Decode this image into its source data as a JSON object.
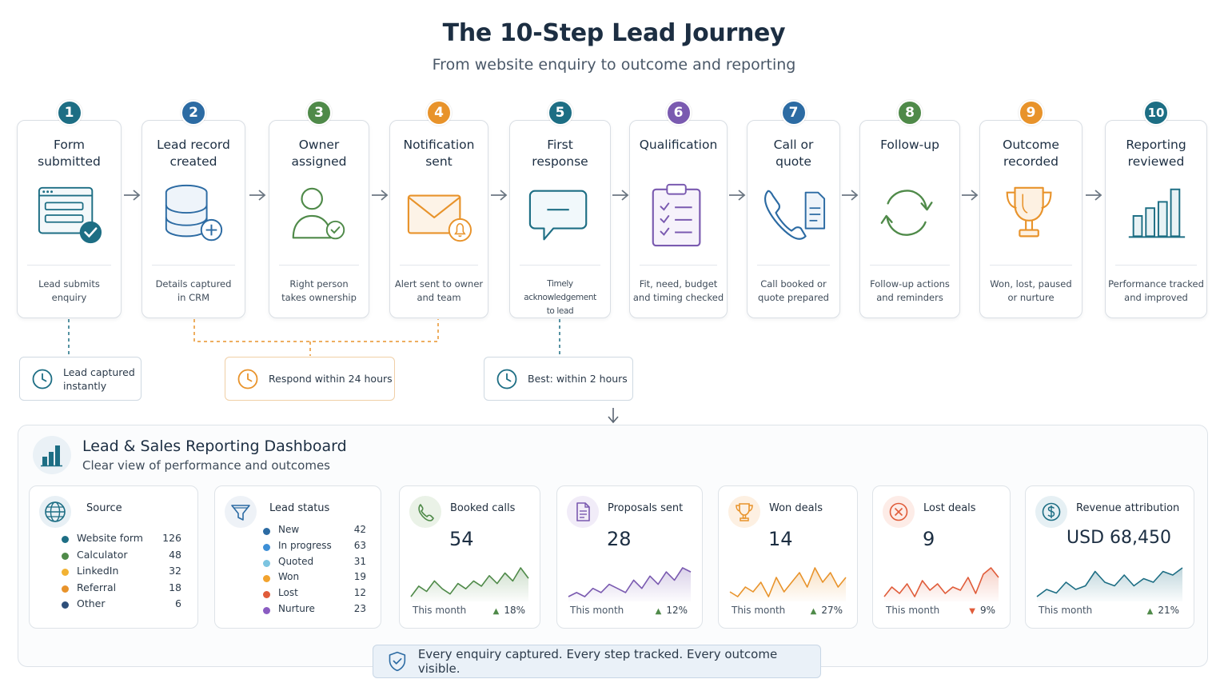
{
  "header": {
    "title": "The 10-Step Lead Journey",
    "subtitle": "From website enquiry to outcome and reporting"
  },
  "colors": {
    "teal": "#1d6e84",
    "blue": "#2c6ba3",
    "green": "#4f8a49",
    "orange": "#e8932b",
    "purple": "#7a5ab0",
    "red": "#e05c3a",
    "grey_line": "#d9dee4"
  },
  "steps": [
    {
      "num": "1",
      "title": "Form\nsubmitted",
      "desc": "Lead submits\nenquiry",
      "icon": "web-form-check-icon",
      "color": "#1d6e84"
    },
    {
      "num": "2",
      "title": "Lead record\ncreated",
      "desc": "Details captured\nin CRM",
      "icon": "database-add-icon",
      "color": "#2c6ba3"
    },
    {
      "num": "3",
      "title": "Owner\nassigned",
      "desc": "Right person\ntakes ownership",
      "icon": "user-check-icon",
      "color": "#4f8a49"
    },
    {
      "num": "4",
      "title": "Notification\nsent",
      "desc": "Alert sent to owner\nand team",
      "icon": "envelope-bell-icon",
      "color": "#e8932b"
    },
    {
      "num": "5",
      "title": "First\nresponse",
      "desc": "Timely acknowledgement\nto lead",
      "icon": "chat-bubble-icon",
      "color": "#1d6e84"
    },
    {
      "num": "6",
      "title": "Qualification",
      "desc": "Fit, need, budget\nand timing checked",
      "icon": "clipboard-checklist-icon",
      "color": "#7a5ab0"
    },
    {
      "num": "7",
      "title": "Call or\nquote",
      "desc": "Call booked or\nquote prepared",
      "icon": "phone-document-icon",
      "color": "#2c6ba3"
    },
    {
      "num": "8",
      "title": "Follow-up",
      "desc": "Follow-up actions\nand reminders",
      "icon": "refresh-cycle-icon",
      "color": "#4f8a49"
    },
    {
      "num": "9",
      "title": "Outcome\nrecorded",
      "desc": "Won, lost, paused\nor nurture",
      "icon": "trophy-icon",
      "color": "#e8932b"
    },
    {
      "num": "10",
      "title": "Reporting\nreviewed",
      "desc": "Performance tracked\nand improved",
      "icon": "bar-chart-icon",
      "color": "#1d6e84"
    }
  ],
  "timers": [
    {
      "label": "Lead captured\ninstantly",
      "icon": "clock-icon",
      "color": "#1d6e84"
    },
    {
      "label": "Respond within 24 hours",
      "icon": "clock-icon",
      "color": "#e8932b"
    },
    {
      "label": "Best: within 2 hours",
      "icon": "clock-icon",
      "color": "#1d6e84"
    }
  ],
  "dashboard": {
    "title": "Lead & Sales Reporting Dashboard",
    "subtitle": "Clear view of performance and outcomes",
    "source": {
      "title": "Source",
      "icon": "globe-icon",
      "items": [
        {
          "label": "Website form",
          "value": "126",
          "color": "#1d6e84"
        },
        {
          "label": "Calculator",
          "value": "48",
          "color": "#4f8a49"
        },
        {
          "label": "LinkedIn",
          "value": "32",
          "color": "#f2b233"
        },
        {
          "label": "Referral",
          "value": "18",
          "color": "#e8932b"
        },
        {
          "label": "Other",
          "value": "6",
          "color": "#2e4f7a"
        }
      ]
    },
    "lead_status": {
      "title": "Lead status",
      "icon": "funnel-icon",
      "items": [
        {
          "label": "New",
          "value": "42",
          "color": "#2c6ba3"
        },
        {
          "label": "In progress",
          "value": "63",
          "color": "#3d8fd6"
        },
        {
          "label": "Quoted",
          "value": "31",
          "color": "#7cc4e0"
        },
        {
          "label": "Won",
          "value": "19",
          "color": "#f2a32e"
        },
        {
          "label": "Lost",
          "value": "12",
          "color": "#e05c3a"
        },
        {
          "label": "Nurture",
          "value": "23",
          "color": "#8a5cc2"
        }
      ]
    },
    "metrics": [
      {
        "title": "Booked calls",
        "value": "54",
        "footer": "This month",
        "change": "18%",
        "trend": "up",
        "icon": "phone-icon",
        "color": "#4f8a49",
        "spark": [
          3,
          7,
          5,
          9,
          6,
          4,
          8,
          6,
          9,
          7,
          11,
          8,
          12,
          9,
          14,
          10
        ]
      },
      {
        "title": "Proposals sent",
        "value": "28",
        "footer": "This month",
        "change": "12%",
        "trend": "up",
        "icon": "document-icon",
        "color": "#7a5ab0",
        "spark": [
          2,
          3,
          2,
          4,
          3,
          5,
          4,
          3,
          6,
          4,
          7,
          5,
          8,
          6,
          9,
          8
        ]
      },
      {
        "title": "Won deals",
        "value": "14",
        "footer": "This month",
        "change": "27%",
        "trend": "up",
        "icon": "trophy-icon",
        "color": "#e8932b",
        "spark": [
          3,
          2,
          4,
          3,
          5,
          2,
          6,
          3,
          5,
          7,
          4,
          8,
          5,
          7,
          4,
          6
        ]
      },
      {
        "title": "Lost deals",
        "value": "9",
        "footer": "This month",
        "change": "9%",
        "trend": "down",
        "icon": "x-circle-icon",
        "color": "#e05c3a",
        "spark": [
          3,
          6,
          4,
          7,
          3,
          8,
          5,
          7,
          4,
          6,
          5,
          9,
          4,
          10,
          12,
          9
        ]
      },
      {
        "title": "Revenue attribution",
        "value": "USD 68,450",
        "footer": "This month",
        "change": "21%",
        "trend": "up",
        "icon": "dollar-circle-icon",
        "color": "#1d6e84",
        "spark": [
          2,
          4,
          3,
          6,
          4,
          5,
          9,
          6,
          5,
          8,
          5,
          7,
          6,
          9,
          8,
          10
        ]
      }
    ]
  },
  "footer": {
    "text": "Every enquiry captured. Every step tracked. Every outcome visible.",
    "icon": "shield-check-icon"
  }
}
